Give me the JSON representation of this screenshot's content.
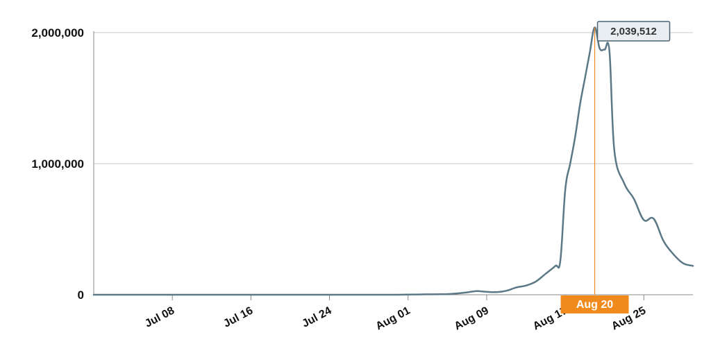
{
  "chart_data": {
    "type": "line",
    "x_axis_type": "date",
    "x_ticks": [
      "Jul 08",
      "Jul 16",
      "Jul 24",
      "Aug 01",
      "Aug 09",
      "Aug 17",
      "Aug 25"
    ],
    "y_ticks": [
      "0",
      "1,000,000",
      "2,000,000"
    ],
    "y_tick_values": [
      0,
      1000000,
      2000000
    ],
    "ylim": [
      0,
      2000000
    ],
    "xlim": [
      "Jun 30",
      "Aug 30"
    ],
    "grid": true,
    "line_color": "#5b7886",
    "highlight_color": "#f08a1c",
    "series": [
      {
        "points": [
          [
            "Jun 30",
            0
          ],
          [
            "Jul 05",
            0
          ],
          [
            "Jul 10",
            0
          ],
          [
            "Jul 15",
            0
          ],
          [
            "Jul 20",
            0
          ],
          [
            "Jul 25",
            0
          ],
          [
            "Jul 30",
            0
          ],
          [
            "Aug 01",
            1000
          ],
          [
            "Aug 03",
            3000
          ],
          [
            "Aug 05",
            5000
          ],
          [
            "Aug 06",
            10000
          ],
          [
            "Aug 07",
            18000
          ],
          [
            "Aug 08",
            28000
          ],
          [
            "Aug 09",
            22000
          ],
          [
            "Aug 10",
            20000
          ],
          [
            "Aug 11",
            30000
          ],
          [
            "Aug 12",
            55000
          ],
          [
            "Aug 13",
            70000
          ],
          [
            "Aug 14",
            100000
          ],
          [
            "Aug 15",
            160000
          ],
          [
            "Aug 16",
            220000
          ],
          [
            "Aug 16 12:00",
            260000
          ],
          [
            "Aug 17",
            800000
          ],
          [
            "Aug 17 12:00",
            1000000
          ],
          [
            "Aug 18",
            1200000
          ],
          [
            "Aug 18 12:00",
            1450000
          ],
          [
            "Aug 19",
            1650000
          ],
          [
            "Aug 19 12:00",
            1850000
          ],
          [
            "Aug 20",
            2039512
          ],
          [
            "Aug 20 12:00",
            1880000
          ],
          [
            "Aug 21",
            1870000
          ],
          [
            "Aug 21 12:00",
            1860000
          ],
          [
            "Aug 22",
            1100000
          ],
          [
            "Aug 23",
            850000
          ],
          [
            "Aug 24",
            730000
          ],
          [
            "Aug 25",
            570000
          ],
          [
            "Aug 26",
            580000
          ],
          [
            "Aug 27",
            410000
          ],
          [
            "Aug 28",
            310000
          ],
          [
            "Aug 29",
            240000
          ],
          [
            "Aug 30",
            220000
          ]
        ]
      }
    ],
    "highlight": {
      "x": "Aug 20",
      "y": 2039512,
      "x_label": "Aug 20",
      "y_label": "2,039,512"
    }
  }
}
